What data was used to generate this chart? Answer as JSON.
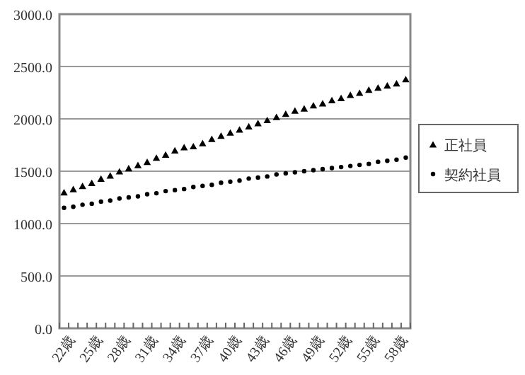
{
  "chart_data": {
    "type": "scatter",
    "categories": [
      "22歳",
      null,
      null,
      "25歳",
      null,
      null,
      "28歳",
      null,
      null,
      "31歳",
      null,
      null,
      "34歳",
      null,
      null,
      "37歳",
      null,
      null,
      "40歳",
      null,
      null,
      "43歳",
      null,
      null,
      "46歳",
      null,
      null,
      "49歳",
      null,
      null,
      "52歳",
      null,
      null,
      "55歳",
      null,
      null,
      "58歳",
      null
    ],
    "series": [
      {
        "name": "正社員",
        "color": "#000000",
        "marker": "triangle",
        "values": [
          1300,
          1330,
          1360,
          1390,
          1430,
          1460,
          1500,
          1530,
          1560,
          1590,
          1630,
          1660,
          1700,
          1730,
          1740,
          1770,
          1810,
          1840,
          1870,
          1900,
          1930,
          1960,
          1990,
          2020,
          2050,
          2080,
          2100,
          2130,
          2150,
          2180,
          2200,
          2230,
          2250,
          2280,
          2300,
          2320,
          2340,
          2380
        ]
      },
      {
        "name": "契約社員",
        "color": "#000000",
        "marker": "circle",
        "values": [
          1150,
          1160,
          1180,
          1190,
          1210,
          1220,
          1240,
          1250,
          1260,
          1280,
          1290,
          1310,
          1320,
          1330,
          1350,
          1360,
          1370,
          1390,
          1400,
          1410,
          1430,
          1440,
          1450,
          1470,
          1480,
          1490,
          1500,
          1510,
          1520,
          1530,
          1540,
          1550,
          1560,
          1570,
          1590,
          1600,
          1610,
          1630
        ]
      }
    ],
    "ylim": [
      0,
      3000
    ],
    "yticks": [
      {
        "value": 0,
        "label": "0.0"
      },
      {
        "value": 500,
        "label": "500.0"
      },
      {
        "value": 1000,
        "label": "1000.0"
      },
      {
        "value": 1500,
        "label": "1500.0"
      },
      {
        "value": 2000,
        "label": "2000.0"
      },
      {
        "value": 2500,
        "label": "2500.0"
      },
      {
        "value": 3000,
        "label": "3000.0"
      }
    ],
    "grid": "y",
    "legend": "right"
  }
}
